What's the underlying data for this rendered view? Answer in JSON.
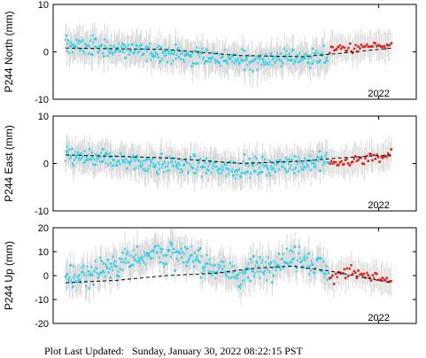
{
  "footer": {
    "label": "Plot Last Updated:",
    "timestamp": "Sunday, January 30, 2022 08:22:15 PST"
  },
  "colors": {
    "cyan_points": "#22d3ee",
    "red_points": "#e0201a",
    "error_bars": "#d9d9d9",
    "trend": "#000000"
  },
  "chart_data": [
    {
      "type": "scatter",
      "ylabel": "P244 North (mm)",
      "yticks": [
        -10,
        0,
        10
      ],
      "ylim": [
        -10,
        10
      ],
      "xticks": [
        "2022"
      ],
      "xtick_positions": [
        2022.0
      ],
      "xlim": [
        2019.4,
        2022.3
      ],
      "grid": false,
      "has_error_bars": true,
      "series": [
        {
          "color": "cyan",
          "x_range": [
            2019.5,
            2021.6
          ],
          "mean_values": [
            1.5,
            1.0,
            0.5,
            0.0,
            -0.6,
            -1.2,
            -1.8,
            -1.5,
            -1.2,
            -1.0
          ],
          "value_range": [
            -6,
            6
          ]
        },
        {
          "color": "red",
          "x_range": [
            2021.6,
            2022.1
          ],
          "mean_values": [
            0.5,
            0.8,
            1.0,
            1.2
          ],
          "value_range": [
            -3,
            3
          ]
        }
      ],
      "trend": {
        "style": "dashed",
        "x": [
          2019.5,
          2020.3,
          2020.9,
          2021.4,
          2021.7,
          2022.1
        ],
        "y": [
          0.8,
          0.5,
          -0.8,
          -1.0,
          -0.3,
          0.8
        ]
      }
    },
    {
      "type": "scatter",
      "ylabel": "P244 East (mm)",
      "yticks": [
        -10,
        0,
        10
      ],
      "ylim": [
        -10,
        10
      ],
      "xticks": [
        "2022"
      ],
      "xtick_positions": [
        2022.0
      ],
      "xlim": [
        2019.4,
        2022.3
      ],
      "grid": false,
      "has_error_bars": true,
      "series": [
        {
          "color": "cyan",
          "x_range": [
            2019.5,
            2021.6
          ],
          "mean_values": [
            1.5,
            1.0,
            0.5,
            0.0,
            -0.3,
            -0.8,
            -1.0,
            -0.5,
            0.0,
            0.5
          ],
          "value_range": [
            -6,
            6
          ]
        },
        {
          "color": "red",
          "x_range": [
            2021.6,
            2022.1
          ],
          "mean_values": [
            0.0,
            0.5,
            1.0,
            2.0
          ],
          "value_range": [
            -3,
            4
          ]
        }
      ],
      "trend": {
        "style": "dashed",
        "x": [
          2019.5,
          2020.3,
          2020.9,
          2021.4,
          2021.7,
          2022.1
        ],
        "y": [
          1.8,
          1.2,
          0.0,
          0.5,
          1.2,
          1.8
        ]
      }
    },
    {
      "type": "scatter",
      "ylabel": "P244 Up (mm)",
      "yticks": [
        -20,
        -10,
        0,
        10,
        20
      ],
      "ylim": [
        -20,
        20
      ],
      "xticks": [
        "2022"
      ],
      "xtick_positions": [
        2022.0
      ],
      "xlim": [
        2019.4,
        2022.3
      ],
      "grid": false,
      "has_error_bars": true,
      "series": [
        {
          "color": "cyan",
          "x_range": [
            2019.5,
            2021.6
          ],
          "mean_values": [
            -2,
            2,
            6,
            10,
            8,
            4,
            0,
            5,
            8,
            2
          ],
          "value_range": [
            -15,
            18
          ]
        },
        {
          "color": "red",
          "x_range": [
            2021.6,
            2022.1
          ],
          "mean_values": [
            -2,
            2,
            0,
            -3
          ],
          "value_range": [
            -8,
            8
          ]
        }
      ],
      "trend": {
        "style": "dashed",
        "x": [
          2019.5,
          2019.9,
          2020.3,
          2020.7,
          2021.0,
          2021.3,
          2021.6,
          2022.1
        ],
        "y": [
          -3,
          -2,
          0,
          1,
          3,
          4,
          2,
          -3
        ]
      }
    }
  ]
}
